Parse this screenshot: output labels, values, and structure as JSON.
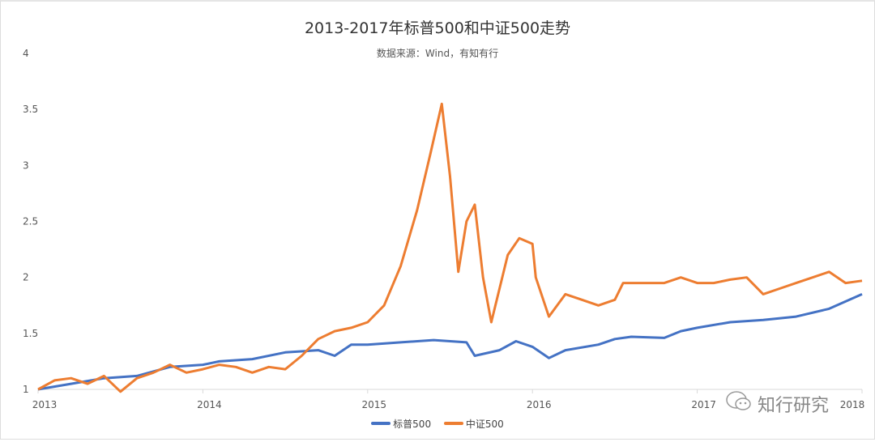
{
  "chart_data": {
    "type": "line",
    "title": "2013-2017年标普500和中证500走势",
    "subtitle": "数据来源：Wind，有知有行",
    "xlabel": "",
    "ylabel": "",
    "xlim": [
      2013,
      2018
    ],
    "ylim": [
      1,
      4
    ],
    "x_ticks": [
      "2013",
      "2014",
      "2015",
      "2016",
      "2017",
      "2018"
    ],
    "y_ticks": [
      "1",
      "1.5",
      "2",
      "2.5",
      "3",
      "3.5",
      "4"
    ],
    "grid": false,
    "legend_position": "bottom",
    "series": [
      {
        "name": "标普500",
        "color": "#4472c4",
        "x": [
          2013,
          2013.2,
          2013.4,
          2013.6,
          2013.8,
          2014.0,
          2014.1,
          2014.3,
          2014.5,
          2014.7,
          2014.8,
          2014.9,
          2015.0,
          2015.2,
          2015.4,
          2015.6,
          2015.65,
          2015.8,
          2015.9,
          2016.0,
          2016.1,
          2016.2,
          2016.4,
          2016.5,
          2016.6,
          2016.8,
          2016.9,
          2017.0,
          2017.2,
          2017.4,
          2017.6,
          2017.8,
          2018.0
        ],
        "y": [
          1.0,
          1.05,
          1.1,
          1.12,
          1.2,
          1.22,
          1.25,
          1.27,
          1.33,
          1.35,
          1.3,
          1.4,
          1.4,
          1.42,
          1.44,
          1.42,
          1.3,
          1.35,
          1.43,
          1.38,
          1.28,
          1.35,
          1.4,
          1.45,
          1.47,
          1.46,
          1.52,
          1.55,
          1.6,
          1.62,
          1.65,
          1.72,
          1.85
        ]
      },
      {
        "name": "中证500",
        "color": "#ed7d31",
        "x": [
          2013,
          2013.1,
          2013.2,
          2013.3,
          2013.4,
          2013.45,
          2013.5,
          2013.6,
          2013.7,
          2013.8,
          2013.9,
          2014.0,
          2014.1,
          2014.2,
          2014.3,
          2014.4,
          2014.5,
          2014.6,
          2014.7,
          2014.8,
          2014.9,
          2015.0,
          2015.1,
          2015.2,
          2015.3,
          2015.38,
          2015.45,
          2015.5,
          2015.55,
          2015.6,
          2015.65,
          2015.7,
          2015.75,
          2015.85,
          2015.92,
          2016.0,
          2016.02,
          2016.1,
          2016.2,
          2016.3,
          2016.4,
          2016.5,
          2016.55,
          2016.7,
          2016.8,
          2016.9,
          2017.0,
          2017.1,
          2017.2,
          2017.3,
          2017.4,
          2017.5,
          2017.6,
          2017.7,
          2017.8,
          2017.9,
          2018.0
        ],
        "y": [
          1.0,
          1.08,
          1.1,
          1.05,
          1.12,
          1.05,
          0.98,
          1.1,
          1.15,
          1.22,
          1.15,
          1.18,
          1.22,
          1.2,
          1.15,
          1.2,
          1.18,
          1.3,
          1.45,
          1.52,
          1.55,
          1.6,
          1.75,
          2.1,
          2.6,
          3.1,
          3.55,
          2.9,
          2.05,
          2.5,
          2.65,
          2.0,
          1.6,
          2.2,
          2.35,
          2.3,
          2.0,
          1.65,
          1.85,
          1.8,
          1.75,
          1.8,
          1.95,
          1.95,
          1.95,
          2.0,
          1.95,
          1.95,
          1.98,
          2.0,
          1.85,
          1.9,
          1.95,
          2.0,
          2.05,
          1.95,
          1.97
        ]
      }
    ]
  },
  "watermark": "知行研究"
}
